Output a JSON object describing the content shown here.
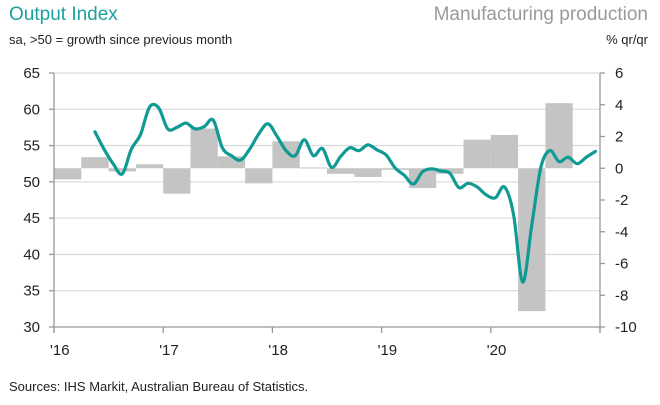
{
  "header": {
    "left_title": "Output Index",
    "left_subtitle": "sa, >50 = growth since previous month",
    "right_title": "Manufacturing production",
    "right_subtitle": "% qr/qr"
  },
  "footer": {
    "source": "Sources: IHS Markit, Australian Bureau of Statistics."
  },
  "colors": {
    "line": "#0f9a93",
    "bars": "#c4c4c4",
    "grid": "#dcdcdc",
    "axis": "#999999",
    "title": "#1aa39c"
  },
  "chart_data": {
    "type": "line+bar",
    "title": "Output Index",
    "right_title": "Manufacturing production",
    "xlabel": "",
    "ylabel": "sa, >50 = growth since previous month",
    "y2label": "% qr/qr",
    "ylim": [
      30,
      65
    ],
    "y2lim": [
      -10,
      6
    ],
    "yticks": [
      30,
      35,
      40,
      45,
      50,
      55,
      60,
      65
    ],
    "y2ticks": [
      -10,
      -8,
      -6,
      -4,
      -2,
      0,
      2,
      4,
      6
    ],
    "xticks": [
      "'16",
      "'17",
      "'18",
      "'19",
      "'20"
    ],
    "grid": true,
    "line_series": {
      "name": "Output Index",
      "axis": "left",
      "x": [
        "2016-05",
        "2016-06",
        "2016-07",
        "2016-08",
        "2016-09",
        "2016-10",
        "2016-11",
        "2016-12",
        "2017-01",
        "2017-02",
        "2017-03",
        "2017-04",
        "2017-05",
        "2017-06",
        "2017-07",
        "2017-08",
        "2017-09",
        "2017-10",
        "2017-11",
        "2017-12",
        "2018-01",
        "2018-02",
        "2018-03",
        "2018-04",
        "2018-05",
        "2018-06",
        "2018-07",
        "2018-08",
        "2018-09",
        "2018-10",
        "2018-11",
        "2018-12",
        "2019-01",
        "2019-02",
        "2019-03",
        "2019-04",
        "2019-05",
        "2019-06",
        "2019-07",
        "2019-08",
        "2019-09",
        "2019-10",
        "2019-11",
        "2019-12",
        "2020-01",
        "2020-02",
        "2020-03",
        "2020-04",
        "2020-05",
        "2020-06",
        "2020-07",
        "2020-08",
        "2020-09",
        "2020-10",
        "2020-11",
        "2020-12"
      ],
      "values": [
        56.9,
        54.5,
        52.5,
        51.1,
        54.5,
        56.5,
        60.3,
        60.2,
        57.3,
        57.5,
        58.1,
        57.3,
        57.6,
        58.5,
        54.7,
        53.6,
        53.0,
        54.5,
        56.6,
        58.0,
        56.3,
        54.3,
        53.6,
        55.8,
        53.6,
        54.6,
        52.0,
        53.5,
        54.7,
        54.3,
        55.1,
        54.4,
        53.7,
        51.9,
        50.9,
        49.7,
        51.4,
        51.8,
        51.5,
        51.2,
        49.2,
        49.8,
        49.3,
        48.2,
        47.8,
        49.3,
        45.5,
        36.2,
        44.0,
        52.0,
        54.3,
        52.8,
        53.4,
        52.5,
        53.4,
        54.2
      ]
    },
    "bar_series": {
      "name": "Manufacturing production",
      "axis": "right",
      "x": [
        "2016-Q1",
        "2016-Q2",
        "2016-Q3",
        "2016-Q4",
        "2017-Q1",
        "2017-Q2",
        "2017-Q3",
        "2017-Q4",
        "2018-Q1",
        "2018-Q2",
        "2018-Q3",
        "2018-Q4",
        "2019-Q1",
        "2019-Q2",
        "2019-Q3",
        "2019-Q4",
        "2020-Q1",
        "2020-Q2",
        "2020-Q3"
      ],
      "values": [
        -0.7,
        0.7,
        -0.2,
        0.25,
        -1.6,
        2.5,
        0.75,
        -0.95,
        1.7,
        0.05,
        -0.35,
        -0.55,
        -0.1,
        -1.25,
        -0.35,
        1.8,
        2.1,
        -9.0,
        4.1
      ]
    }
  }
}
